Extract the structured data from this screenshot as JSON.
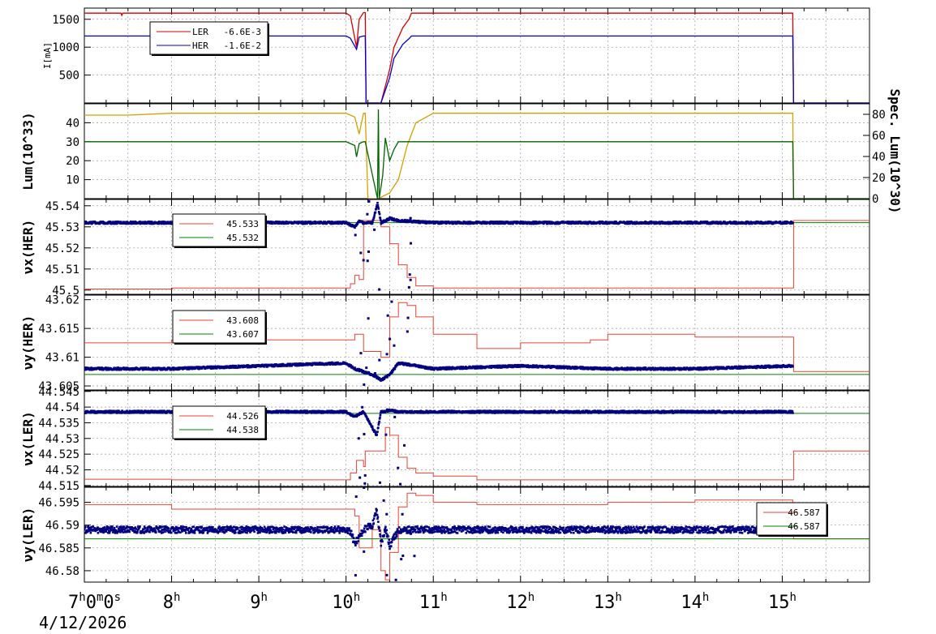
{
  "chart_data": [
    {
      "type": "line",
      "ylabel": "I[mA]",
      "ylim": [
        0,
        1700
      ],
      "yticks": [
        500,
        1000,
        1500
      ],
      "grid": true,
      "legend": {
        "placement": "top-left",
        "entries": [
          {
            "label": "LER",
            "value": "-6.6E-3",
            "color": "#d40000"
          },
          {
            "label": "HER",
            "value": "-1.6E-2",
            "color": "#0000c8"
          }
        ]
      },
      "series": [
        {
          "name": "LER",
          "color": "#d40000",
          "x": [
            7.0,
            7.42,
            7.43,
            7.44,
            10.0,
            10.05,
            10.12,
            10.15,
            10.2,
            10.22,
            10.23,
            10.35,
            10.4,
            10.5,
            10.55,
            10.65,
            10.72,
            10.75,
            11.0,
            15.12,
            15.13,
            16.0
          ],
          "y": [
            1610,
            1610,
            1570,
            1610,
            1610,
            1560,
            1000,
            1500,
            1620,
            1620,
            0,
            0,
            0,
            600,
            1000,
            1350,
            1500,
            1610,
            1610,
            1610,
            0,
            0
          ]
        },
        {
          "name": "HER",
          "color": "#0000c8",
          "x": [
            7.0,
            10.0,
            10.05,
            10.12,
            10.15,
            10.2,
            10.22,
            10.23,
            10.35,
            10.4,
            10.5,
            10.55,
            10.65,
            10.72,
            10.75,
            11.0,
            15.12,
            15.13,
            16.0
          ],
          "y": [
            1200,
            1200,
            1160,
            960,
            1180,
            1200,
            1200,
            0,
            0,
            0,
            450,
            800,
            1050,
            1150,
            1200,
            1200,
            1200,
            0,
            0
          ]
        }
      ]
    },
    {
      "type": "line",
      "ylabel": "Lum(10^33)",
      "ylabel_right": "Spec. Lum(10^30)",
      "ylim": [
        0,
        50
      ],
      "yticks": [
        10,
        20,
        30,
        40
      ],
      "ylim_right": [
        0,
        90
      ],
      "yticks_right": [
        0,
        20,
        40,
        60,
        80
      ],
      "grid": true,
      "series": [
        {
          "name": "",
          "color": "#d4a000",
          "axis": "left",
          "x": [
            7.0,
            7.5,
            8.0,
            9.0,
            10.0,
            10.1,
            10.15,
            10.2,
            10.22,
            10.25,
            10.36,
            10.37,
            10.5,
            10.6,
            10.7,
            10.8,
            11.0,
            15.12,
            15.13,
            16.0
          ],
          "y": [
            44,
            44,
            45,
            45,
            45,
            43,
            34,
            45,
            45,
            0,
            0,
            0,
            3,
            10,
            28,
            40,
            45,
            45,
            0,
            0
          ]
        },
        {
          "name": "",
          "color": "#006400",
          "axis": "left",
          "x": [
            7.0,
            10.0,
            10.1,
            10.12,
            10.15,
            10.2,
            10.22,
            10.36,
            10.37,
            10.38,
            10.42,
            10.45,
            10.5,
            10.55,
            10.6,
            10.7,
            10.75,
            11.0,
            15.12,
            15.13,
            16.0
          ],
          "y": [
            30,
            30,
            28,
            22,
            29,
            30,
            30,
            0,
            47,
            0,
            12,
            32,
            20,
            26,
            30,
            30,
            30,
            30,
            30,
            0,
            0
          ]
        }
      ]
    },
    {
      "type": "line",
      "ylabel": "νx(HER)",
      "ylim": [
        45.498,
        45.543
      ],
      "yticks": [
        45.5,
        45.51,
        45.52,
        45.53,
        45.54
      ],
      "yticklabels": [
        "45.5",
        "45.51",
        "45.52",
        "45.53",
        "45.54"
      ],
      "grid": true,
      "legend": {
        "placement": "top-left",
        "entries": [
          {
            "value": "45.533",
            "color": "#ee4030"
          },
          {
            "value": "45.532",
            "color": "#008000"
          }
        ]
      },
      "series": [
        {
          "name": "",
          "color": "#ee4030",
          "kind": "setpoint",
          "x": [
            7.0,
            8.0,
            8.01,
            10.0,
            10.05,
            10.1,
            10.15,
            10.2,
            10.35,
            10.4,
            10.5,
            10.6,
            10.7,
            10.8,
            11.0,
            15.12,
            15.13,
            16.0
          ],
          "y": [
            45.5005,
            45.5005,
            45.501,
            45.501,
            45.503,
            45.507,
            45.505,
            45.533,
            45.533,
            45.53,
            45.522,
            45.512,
            45.506,
            45.502,
            45.501,
            45.501,
            45.533,
            45.533
          ]
        },
        {
          "name": "",
          "color": "#008000",
          "kind": "setpoint",
          "x": [
            7.0,
            16.0
          ],
          "y": [
            45.532,
            45.532
          ]
        },
        {
          "name": "",
          "color": "#000080",
          "kind": "measured",
          "x": [
            7.0,
            10.0,
            10.05,
            10.1,
            10.15,
            10.2,
            10.3,
            10.36,
            10.4,
            10.5,
            10.6,
            11.0,
            15.12
          ],
          "y": [
            45.532,
            45.532,
            45.531,
            45.53,
            45.533,
            45.532,
            45.532,
            45.541,
            45.532,
            45.534,
            45.533,
            45.532,
            45.532
          ]
        }
      ]
    },
    {
      "type": "line",
      "ylabel": "νy(HER)",
      "ylim": [
        43.6043,
        43.6208
      ],
      "yticks": [
        43.605,
        43.61,
        43.615,
        43.62
      ],
      "yticklabels": [
        "43.605",
        "43.61",
        "43.615",
        "43.62"
      ],
      "grid": true,
      "legend": {
        "placement": "top-left",
        "entries": [
          {
            "value": "43.608",
            "color": "#ee4030"
          },
          {
            "value": "43.607",
            "color": "#008000"
          }
        ]
      },
      "series": [
        {
          "name": "",
          "color": "#ee4030",
          "kind": "setpoint",
          "x": [
            7.0,
            7.5,
            8.0,
            10.0,
            10.1,
            10.2,
            10.4,
            10.5,
            10.6,
            10.7,
            10.8,
            11.0,
            11.5,
            12.0,
            12.5,
            12.8,
            13.0,
            13.5,
            14.0,
            15.12,
            15.13,
            16.0
          ],
          "y": [
            43.6125,
            43.6125,
            43.613,
            43.613,
            43.614,
            43.611,
            43.61,
            43.617,
            43.6195,
            43.619,
            43.617,
            43.614,
            43.6115,
            43.6125,
            43.6125,
            43.613,
            43.614,
            43.614,
            43.6135,
            43.6135,
            43.6075,
            43.6075
          ]
        },
        {
          "name": "",
          "color": "#008000",
          "kind": "setpoint",
          "x": [
            7.0,
            16.0
          ],
          "y": [
            43.607,
            43.607
          ]
        },
        {
          "name": "",
          "color": "#000080",
          "kind": "measured",
          "x": [
            7.0,
            8.0,
            9.0,
            10.0,
            10.1,
            10.3,
            10.4,
            10.5,
            10.6,
            11.0,
            12.0,
            13.0,
            14.0,
            15.12
          ],
          "y": [
            43.608,
            43.608,
            43.6085,
            43.609,
            43.608,
            43.607,
            43.606,
            43.607,
            43.609,
            43.608,
            43.6085,
            43.608,
            43.608,
            43.6085
          ]
        }
      ]
    },
    {
      "type": "line",
      "ylabel": "νx(LER)",
      "ylim": [
        44.5147,
        44.5452
      ],
      "yticks": [
        44.515,
        44.52,
        44.525,
        44.53,
        44.535,
        44.54,
        44.545
      ],
      "yticklabels": [
        "44.515",
        "44.52",
        "44.525",
        "44.53",
        "44.535",
        "44.54",
        "44.545"
      ],
      "grid": true,
      "legend": {
        "placement": "top-left",
        "entries": [
          {
            "value": "44.526",
            "color": "#ee4030"
          },
          {
            "value": "44.538",
            "color": "#008000"
          }
        ]
      },
      "series": [
        {
          "name": "",
          "color": "#ee4030",
          "kind": "setpoint",
          "x": [
            7.0,
            7.5,
            8.0,
            10.0,
            10.05,
            10.12,
            10.2,
            10.22,
            10.4,
            10.45,
            10.5,
            10.6,
            10.7,
            10.8,
            11.0,
            11.5,
            15.12,
            15.13,
            16.0
          ],
          "y": [
            44.517,
            44.517,
            44.5168,
            44.5168,
            44.519,
            44.523,
            44.521,
            44.526,
            44.526,
            44.5335,
            44.531,
            44.524,
            44.5205,
            44.519,
            44.518,
            44.5168,
            44.5168,
            44.526,
            44.526
          ]
        },
        {
          "name": "",
          "color": "#008000",
          "kind": "setpoint",
          "x": [
            7.0,
            16.0
          ],
          "y": [
            44.538,
            44.538
          ]
        },
        {
          "name": "",
          "color": "#000080",
          "kind": "measured",
          "x": [
            7.0,
            10.0,
            10.1,
            10.2,
            10.35,
            10.4,
            10.5,
            10.6,
            11.0,
            15.12
          ],
          "y": [
            44.5385,
            44.5385,
            44.537,
            44.5385,
            44.531,
            44.5385,
            44.539,
            44.5385,
            44.5385,
            44.5385
          ]
        }
      ]
    },
    {
      "type": "line",
      "ylabel": "νy(LER)",
      "ylim": [
        46.5775,
        46.5983
      ],
      "yticks": [
        46.58,
        46.585,
        46.59,
        46.595
      ],
      "yticklabels": [
        "46.58",
        "46.585",
        "46.59",
        "46.595"
      ],
      "grid": true,
      "legend": {
        "placement": "top-right",
        "entries": [
          {
            "value": "46.587",
            "color": "#ee4030"
          },
          {
            "value": "46.587",
            "color": "#008000"
          }
        ]
      },
      "series": [
        {
          "name": "",
          "color": "#ee4030",
          "kind": "setpoint",
          "x": [
            7.0,
            7.5,
            8.0,
            9.0,
            10.0,
            10.1,
            10.15,
            10.3,
            10.4,
            10.45,
            10.5,
            10.6,
            10.7,
            10.8,
            11.0,
            11.5,
            12.0,
            13.0,
            14.0,
            15.12,
            15.13,
            16.0
          ],
          "y": [
            46.5945,
            46.5945,
            46.5935,
            46.5935,
            46.5935,
            46.592,
            46.585,
            46.589,
            46.58,
            46.578,
            46.584,
            46.594,
            46.597,
            46.5965,
            46.595,
            46.5945,
            46.5945,
            46.595,
            46.5955,
            46.5945,
            46.587,
            46.587
          ]
        },
        {
          "name": "",
          "color": "#008000",
          "kind": "setpoint",
          "x": [
            7.0,
            16.0
          ],
          "y": [
            46.587,
            46.587
          ]
        },
        {
          "name": "",
          "color": "#000080",
          "kind": "measured",
          "x": [
            7.0,
            10.0,
            10.05,
            10.1,
            10.2,
            10.3,
            10.35,
            10.4,
            10.45,
            10.5,
            10.6,
            11.0,
            15.12
          ],
          "y": [
            46.589,
            46.589,
            46.5885,
            46.586,
            46.589,
            46.59,
            46.5935,
            46.586,
            46.5895,
            46.5855,
            46.589,
            46.589,
            46.589
          ]
        }
      ]
    }
  ],
  "x_axis": {
    "range_hours": [
      7.0,
      16.0
    ],
    "ticks": [
      {
        "h": 7,
        "label": "7",
        "sup": "h",
        "extra": "0",
        "extra_sup": "m",
        "extra2": "0",
        "extra2_sup": "s"
      },
      {
        "h": 8,
        "label": "8",
        "sup": "h"
      },
      {
        "h": 9,
        "label": "9",
        "sup": "h"
      },
      {
        "h": 10,
        "label": "10",
        "sup": "h"
      },
      {
        "h": 11,
        "label": "11",
        "sup": "h"
      },
      {
        "h": 12,
        "label": "12",
        "sup": "h"
      },
      {
        "h": 13,
        "label": "13",
        "sup": "h"
      },
      {
        "h": 14,
        "label": "14",
        "sup": "h"
      },
      {
        "h": 15,
        "label": "15",
        "sup": "h"
      }
    ],
    "date": "4/12/2026"
  }
}
